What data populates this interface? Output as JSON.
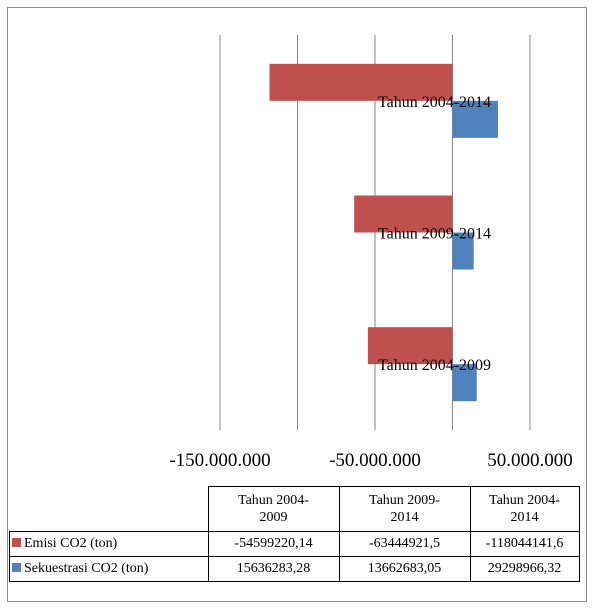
{
  "chart_data": {
    "type": "bar",
    "orientation": "horizontal",
    "categories": [
      "Tahun 2004-2014",
      "Tahun 2009-2014",
      "Tahun 2004-2009"
    ],
    "series": [
      {
        "name": "Emisi CO2 (ton)",
        "color": "#c0504d",
        "values": [
          -118044141.6,
          -63444921.5,
          -54599220.14
        ]
      },
      {
        "name": "Sekuestrasi CO2 (ton)",
        "color": "#4f81bd",
        "values": [
          29298966.32,
          13662683.05,
          15636283.28
        ]
      }
    ],
    "xlim": [
      -150000000,
      50000000
    ],
    "xticks": [
      -150000000,
      -50000000,
      50000000
    ],
    "xtick_labels": [
      "-150.000.000",
      "-50.000.000",
      "50.000.000"
    ],
    "gridlines": true,
    "legend": "data-table"
  },
  "table": {
    "headers": [
      "Tahun 2004-\n2009",
      "Tahun 2009-\n2014",
      "Tahun 2004-\n2014"
    ],
    "rows": [
      {
        "label": "Emisi CO2 (ton)",
        "color": "#c0504d",
        "cells": [
          "-54599220,14",
          "-63444921,5",
          "-118044141,6"
        ]
      },
      {
        "label": "Sekuestrasi CO2 (ton)",
        "color": "#4f81bd",
        "cells": [
          "15636283,28",
          "13662683,05",
          "29298966,32"
        ]
      }
    ]
  }
}
